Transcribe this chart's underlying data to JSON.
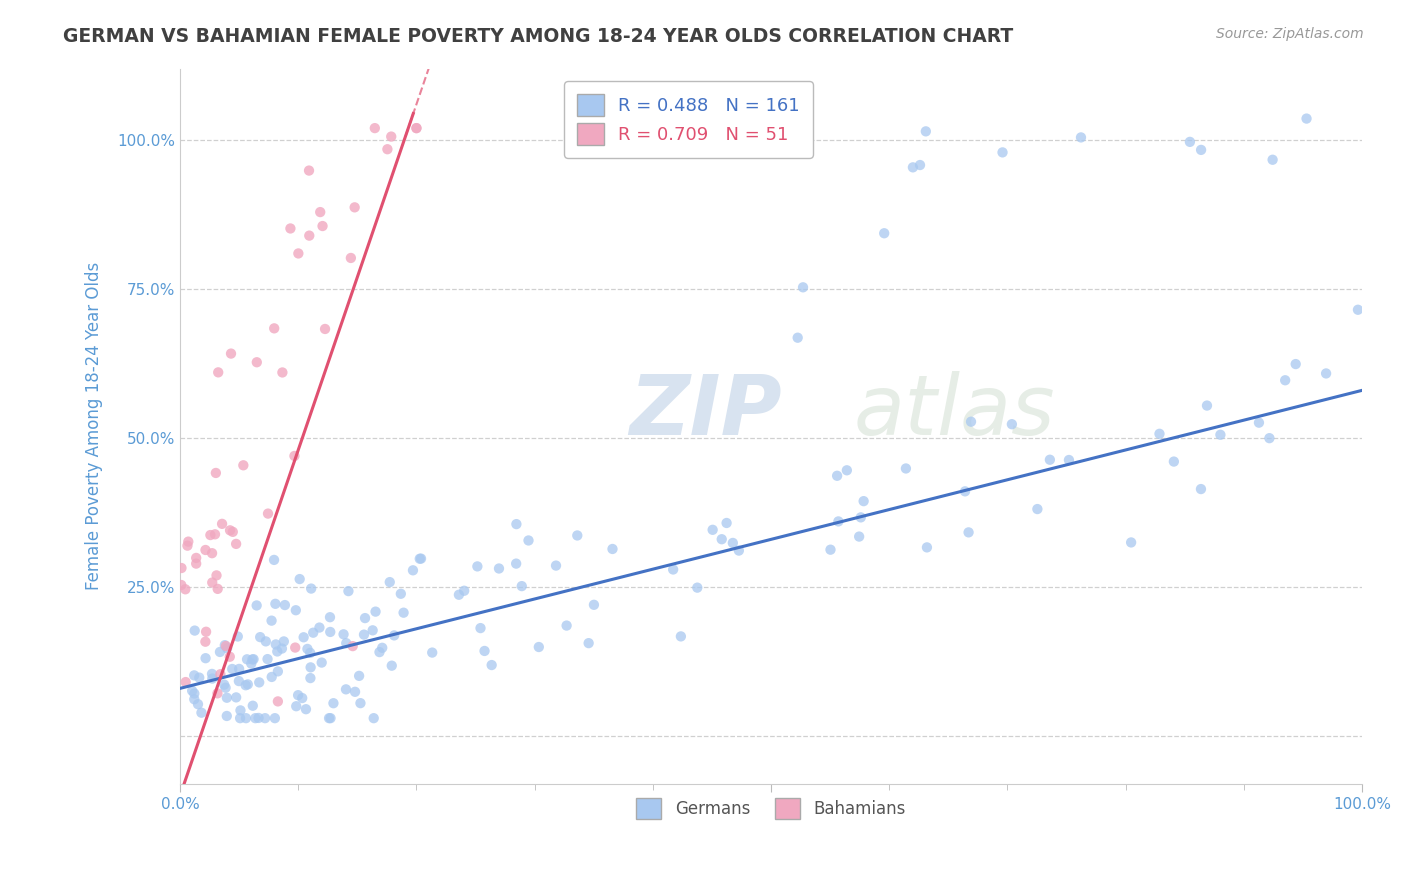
{
  "title": "GERMAN VS BAHAMIAN FEMALE POVERTY AMONG 18-24 YEAR OLDS CORRELATION CHART",
  "source": "Source: ZipAtlas.com",
  "ylabel": "Female Poverty Among 18-24 Year Olds",
  "xlim": [
    0.0,
    1.0
  ],
  "ylim": [
    -0.08,
    1.12
  ],
  "german_R": 0.488,
  "german_N": 161,
  "bahamian_R": 0.709,
  "bahamian_N": 51,
  "german_color": "#a8c8f0",
  "bahamian_color": "#f0a8c0",
  "german_line_color": "#4472c4",
  "bahamian_line_color": "#e05070",
  "watermark_zip": "ZIP",
  "watermark_atlas": "atlas",
  "grid_color": "#d0d0d0",
  "title_color": "#404040",
  "axis_label_color": "#5b9bd5",
  "tick_label_color": "#5b9bd5"
}
